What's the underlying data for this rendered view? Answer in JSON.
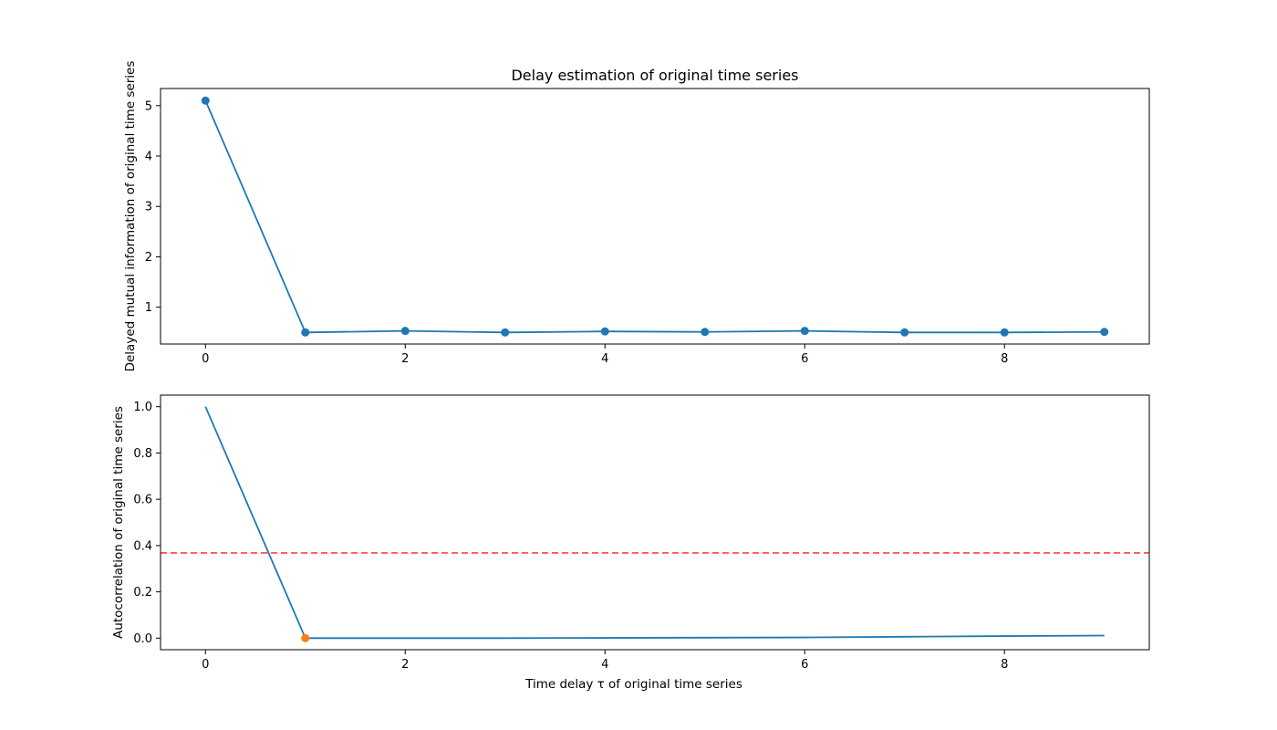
{
  "chart_data": [
    {
      "type": "line",
      "title": "Delay estimation of original time series",
      "xlabel": "",
      "ylabel": "Delayed mutual information of original time series",
      "xlim": [
        -0.45,
        9.45
      ],
      "ylim": [
        0.27,
        5.34
      ],
      "xticks": [
        0,
        2,
        4,
        6,
        8
      ],
      "yticks": [
        1,
        2,
        3,
        4,
        5
      ],
      "grid": false,
      "series": [
        {
          "color": "#1f77b4",
          "marker": "circle",
          "x": [
            0,
            1,
            2,
            3,
            4,
            5,
            6,
            7,
            8,
            9
          ],
          "y": [
            5.1,
            0.5,
            0.53,
            0.5,
            0.52,
            0.51,
            0.53,
            0.5,
            0.5,
            0.51
          ]
        }
      ]
    },
    {
      "type": "line",
      "title": "",
      "xlabel": "Time delay τ of original time series",
      "ylabel": "Autocorrelation of original time series",
      "xlim": [
        -0.45,
        9.45
      ],
      "ylim": [
        -0.05,
        1.05
      ],
      "xticks": [
        0,
        2,
        4,
        6,
        8
      ],
      "yticks": [
        0.0,
        0.2,
        0.4,
        0.6,
        0.8,
        1.0
      ],
      "grid": false,
      "series": [
        {
          "color": "#1f77b4",
          "marker": "none",
          "x": [
            0,
            1,
            2,
            3,
            4,
            5,
            6,
            7,
            8,
            9
          ],
          "y": [
            1.0,
            0.0,
            0.0,
            0.0,
            0.001,
            0.002,
            0.003,
            0.006,
            0.009,
            0.011
          ]
        }
      ],
      "highlight_points": [
        {
          "color": "#ff7f0e",
          "x": 1,
          "y": 0.0
        }
      ],
      "hlines": [
        {
          "color": "#ff0000",
          "style": "dashed",
          "y": 0.368
        }
      ]
    }
  ]
}
